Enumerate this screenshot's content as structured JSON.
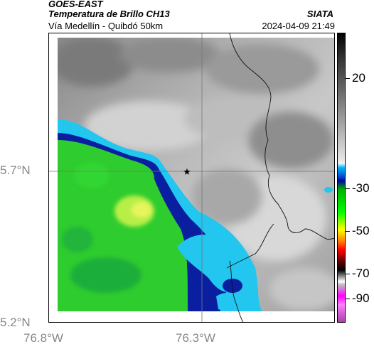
{
  "header": {
    "satellite": "GOES-EAST",
    "product": "Temperatura de Brillo CH13",
    "location": "Vía Medellín - Quibdó 50km",
    "agency": "SIATA",
    "timestamp": "2024-04-09 21:49"
  },
  "axes": {
    "y_ticks": [
      "5.7°N",
      "5.2°N"
    ],
    "x_ticks": [
      "76.8°W",
      "76.3°W"
    ]
  },
  "colorbar": {
    "labels": [
      "20",
      "-30",
      "-50",
      "-70",
      "-90"
    ]
  },
  "map": {
    "marker": "star-icon",
    "colors": {
      "cold_cloud_green": "#2ecc2e",
      "cold_cloud_yellow": "#ddf25a",
      "deep_blue": "#0a1fa0",
      "cyan": "#22c6ee",
      "gray_background": "#9a9a9a",
      "border_line": "#000000"
    }
  }
}
